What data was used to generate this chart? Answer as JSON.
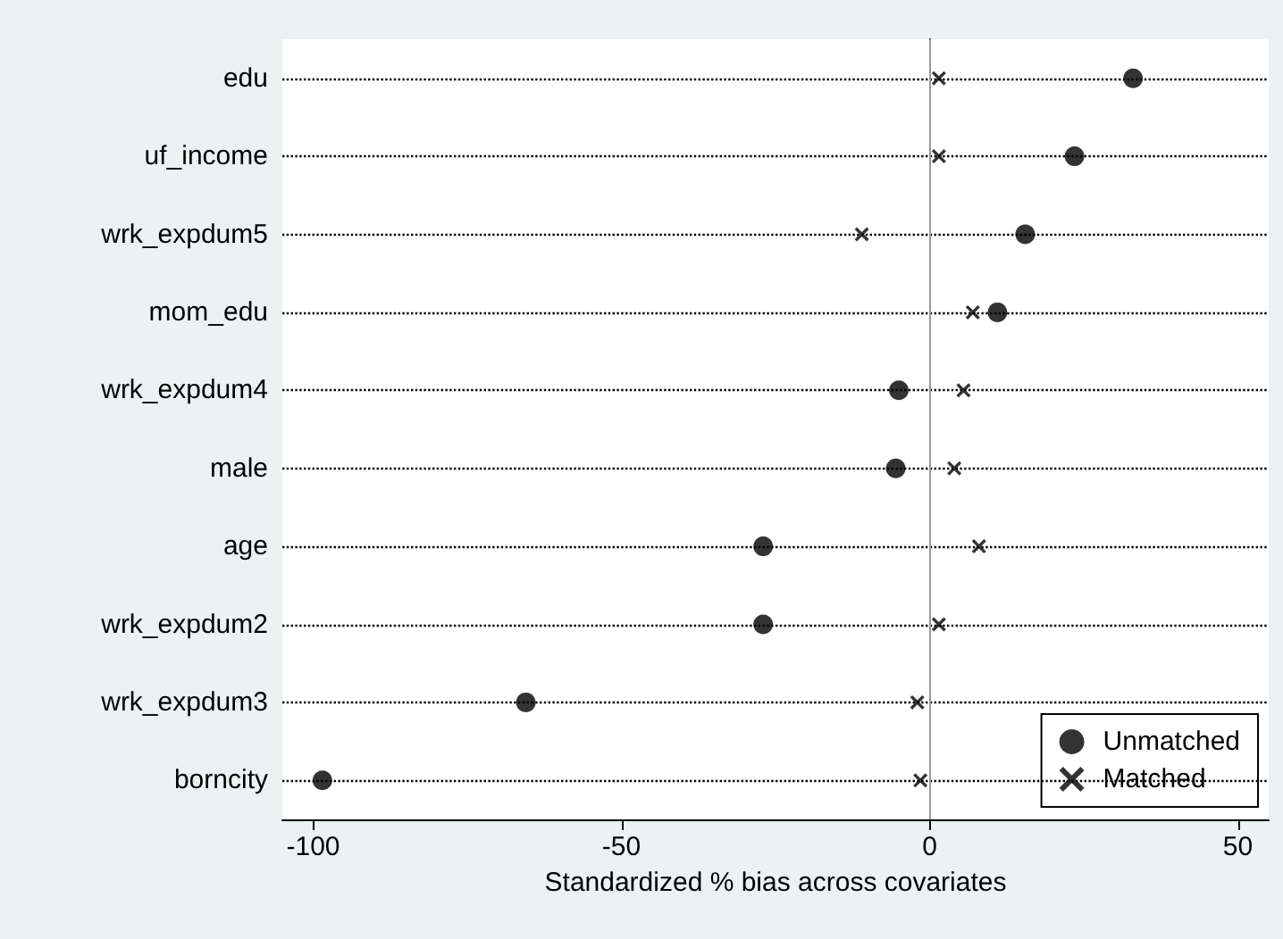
{
  "chart_data": {
    "type": "scatter",
    "orientation": "horizontal",
    "xlabel": "Standardized % bias across covariates",
    "categories": [
      "edu",
      "uf_income",
      "wrk_expdum5",
      "mom_edu",
      "wrk_expdum4",
      "male",
      "age",
      "wrk_expdum2",
      "wrk_expdum3",
      "borncity"
    ],
    "series": [
      {
        "name": "Unmatched",
        "color": "#000000",
        "marker": "circle",
        "values": [
          33,
          23.5,
          15.5,
          11,
          -5,
          -5.5,
          -27,
          -27,
          -65.5,
          -98.5
        ]
      },
      {
        "name": "Matched",
        "color": "#000000",
        "marker": "cross",
        "values": [
          1.5,
          1.5,
          -11,
          7,
          5.5,
          4,
          8,
          1.5,
          -2,
          -1.5
        ]
      }
    ],
    "xlim": [
      -105,
      55
    ],
    "xticks": [
      -100,
      -50,
      0,
      50
    ],
    "ref_lines": [
      {
        "axis": "x",
        "value": 0,
        "color": "#999999"
      }
    ],
    "grid": "y",
    "line_style": "dotted",
    "legend": "bottom right"
  }
}
